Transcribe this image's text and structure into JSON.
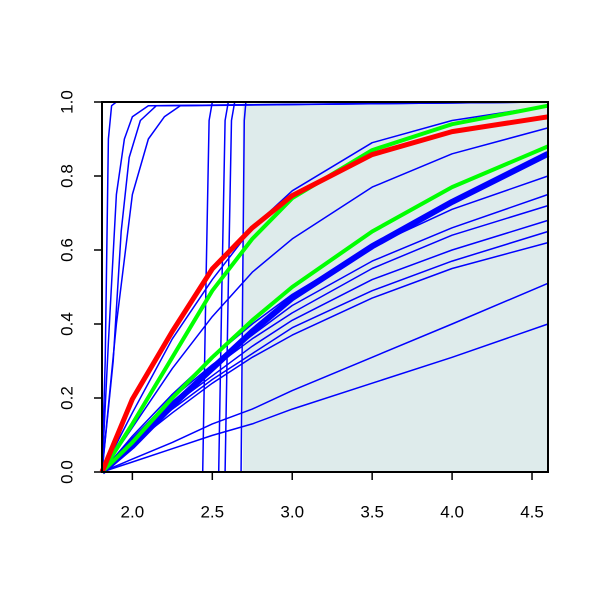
{
  "chart_data": {
    "type": "line",
    "xlim": [
      1.81,
      4.6
    ],
    "ylim": [
      0,
      1
    ],
    "xticks": [
      {
        "value": 2,
        "label": "2.0"
      },
      {
        "value": 2.5,
        "label": "2.5"
      },
      {
        "value": 3,
        "label": "3.0"
      },
      {
        "value": 3.5,
        "label": "3.5"
      },
      {
        "value": 4,
        "label": "4.0"
      },
      {
        "value": 4.5,
        "label": "4.5"
      }
    ],
    "yticks": [
      {
        "value": 0,
        "label": "0.0"
      },
      {
        "value": 0.2,
        "label": "0.2"
      },
      {
        "value": 0.4,
        "label": "0.4"
      },
      {
        "value": 0.6,
        "label": "0.6"
      },
      {
        "value": 0.8,
        "label": "0.8"
      },
      {
        "value": 1,
        "label": "1.0"
      }
    ],
    "shaded_region": {
      "xmin": 2.69,
      "color": "#deebeb"
    },
    "x": [
      1.81,
      2.0,
      2.25,
      2.5,
      2.75,
      3.0,
      3.5,
      4.0,
      4.6
    ],
    "series": [
      {
        "color": "#0000ff",
        "width": 1.5,
        "values": [
          0,
          0.097,
          0.21,
          0.31,
          0.4,
          0.48,
          0.61,
          0.71,
          0.8
        ]
      },
      {
        "color": "#0000ff",
        "width": 1.5,
        "values": [
          0,
          0.091,
          0.2,
          0.29,
          0.37,
          0.45,
          0.57,
          0.66,
          0.75
        ]
      },
      {
        "color": "#0000ff",
        "width": 1.5,
        "values": [
          0,
          0.087,
          0.19,
          0.28,
          0.36,
          0.43,
          0.55,
          0.64,
          0.72
        ]
      },
      {
        "color": "#0000ff",
        "width": 1.5,
        "values": [
          0,
          0.082,
          0.18,
          0.26,
          0.34,
          0.41,
          0.52,
          0.6,
          0.68
        ]
      },
      {
        "color": "#0000ff",
        "width": 1.5,
        "values": [
          0,
          0.079,
          0.17,
          0.25,
          0.32,
          0.39,
          0.49,
          0.57,
          0.65
        ]
      },
      {
        "color": "#0000ff",
        "width": 1.5,
        "values": [
          0,
          0.075,
          0.16,
          0.24,
          0.31,
          0.37,
          0.47,
          0.55,
          0.62
        ]
      },
      {
        "color": "#0000ff",
        "width": 1.5,
        "values": [
          0,
          0.035,
          0.08,
          0.13,
          0.17,
          0.22,
          0.31,
          0.4,
          0.51
        ]
      },
      {
        "color": "#0000ff",
        "width": 1.5,
        "values": [
          0,
          0.027,
          0.063,
          0.099,
          0.13,
          0.17,
          0.24,
          0.31,
          0.4
        ]
      },
      {
        "color": "#0000ff",
        "width": 1.5,
        "values": [
          0,
          0.16,
          0.36,
          0.52,
          0.66,
          0.76,
          0.89,
          0.95,
          0.99
        ]
      },
      {
        "color": "#0000ff",
        "width": 1.5,
        "values": [
          0,
          0.12,
          0.28,
          0.42,
          0.54,
          0.63,
          0.77,
          0.86,
          0.93
        ]
      },
      {
        "color": "#0000ff",
        "width": 6,
        "values": [
          0,
          0.07,
          0.18,
          0.28,
          0.38,
          0.47,
          0.61,
          0.73,
          0.86
        ]
      },
      {
        "color": "#0000ff",
        "width": 1.5,
        "x": [
          1.81,
          1.83,
          1.85,
          1.87,
          1.9,
          4.6
        ],
        "values": [
          0,
          0.3,
          0.9,
          0.99,
          1,
          1
        ]
      },
      {
        "color": "#0000ff",
        "width": 1.5,
        "x": [
          1.81,
          1.85,
          1.9,
          1.95,
          2.0,
          2.1,
          4.6
        ],
        "values": [
          0,
          0.35,
          0.75,
          0.9,
          0.96,
          0.99,
          1
        ]
      },
      {
        "color": "#0000ff",
        "width": 1.5,
        "x": [
          1.81,
          1.9,
          2.0,
          2.1,
          2.2,
          2.3,
          4.6
        ],
        "values": [
          0,
          0.4,
          0.75,
          0.9,
          0.96,
          0.99,
          1
        ]
      },
      {
        "color": "#0000ff",
        "width": 1.5,
        "x": [
          1.81,
          1.88,
          1.93,
          1.98,
          2.05,
          2.15,
          4.6
        ],
        "values": [
          0,
          0.3,
          0.65,
          0.85,
          0.95,
          0.99,
          1
        ]
      },
      {
        "color": "#0000ff",
        "width": 1.5,
        "x": [
          1.81,
          2.44,
          2.46,
          2.48,
          2.5,
          4.6
        ],
        "values": [
          0,
          0,
          0.5,
          0.95,
          1,
          1
        ]
      },
      {
        "color": "#0000ff",
        "width": 1.5,
        "x": [
          1.81,
          2.54,
          2.56,
          2.58,
          2.6,
          4.6
        ],
        "values": [
          0,
          0,
          0.5,
          0.95,
          1,
          1
        ]
      },
      {
        "color": "#0000ff",
        "width": 1.5,
        "x": [
          1.81,
          2.58,
          2.6,
          2.62,
          2.64,
          4.6
        ],
        "values": [
          0,
          0,
          0.5,
          0.95,
          1,
          1
        ]
      },
      {
        "color": "#0000ff",
        "width": 1.5,
        "x": [
          1.81,
          2.68,
          2.69,
          2.7,
          2.71,
          4.6
        ],
        "values": [
          0,
          0,
          0.5,
          0.95,
          1,
          1
        ]
      },
      {
        "color": "#00ff00",
        "width": 4,
        "values": [
          0,
          0.08,
          0.2,
          0.31,
          0.41,
          0.5,
          0.65,
          0.77,
          0.88
        ]
      },
      {
        "color": "#00ff00",
        "width": 4,
        "values": [
          0,
          0.13,
          0.31,
          0.49,
          0.63,
          0.74,
          0.87,
          0.94,
          0.99
        ]
      },
      {
        "color": "#ff0000",
        "width": 5,
        "values": [
          0,
          0.197,
          0.38,
          0.549,
          0.66,
          0.747,
          0.858,
          0.92,
          0.96
        ]
      }
    ]
  }
}
